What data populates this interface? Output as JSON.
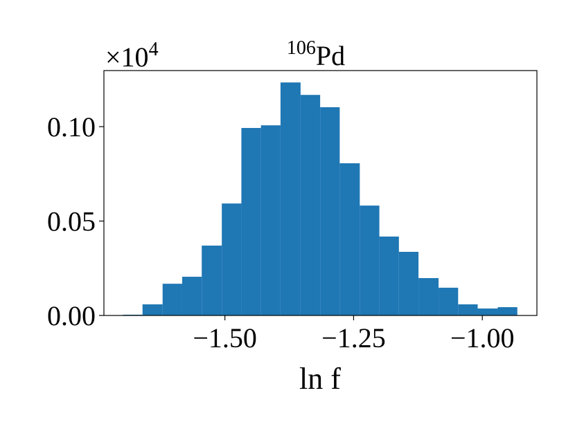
{
  "chart_data": {
    "type": "histogram",
    "title": "Pd",
    "title_superscript": "106",
    "y_offset_base": "×10",
    "y_offset_exponent": "4",
    "xlabel": "ln f",
    "color": "#1f77b4",
    "bins": [
      -1.698,
      -1.66,
      -1.621,
      -1.583,
      -1.545,
      -1.506,
      -1.468,
      -1.43,
      -1.392,
      -1.353,
      -1.315,
      -1.277,
      -1.238,
      -1.2,
      -1.162,
      -1.124,
      -1.085,
      -1.047,
      -1.009,
      -0.97,
      -0.932
    ],
    "counts": [
      0.0004,
      0.0059,
      0.0168,
      0.0205,
      0.037,
      0.0593,
      0.0993,
      0.1007,
      0.1234,
      0.1168,
      0.1103,
      0.0806,
      0.0582,
      0.0418,
      0.0337,
      0.0198,
      0.0147,
      0.0059,
      0.0037,
      0.0044
    ],
    "xlim": [
      -1.735,
      -0.894
    ],
    "ylim": [
      0,
      0.1297
    ],
    "xticks": [
      {
        "value": -1.5,
        "label": "−1.50"
      },
      {
        "value": -1.25,
        "label": "−1.25"
      },
      {
        "value": -1.0,
        "label": "−1.00"
      }
    ],
    "yticks": [
      {
        "value": 0,
        "label": "0.00"
      },
      {
        "value": 0.05,
        "label": "0.05"
      },
      {
        "value": 0.1,
        "label": "0.10"
      }
    ]
  }
}
